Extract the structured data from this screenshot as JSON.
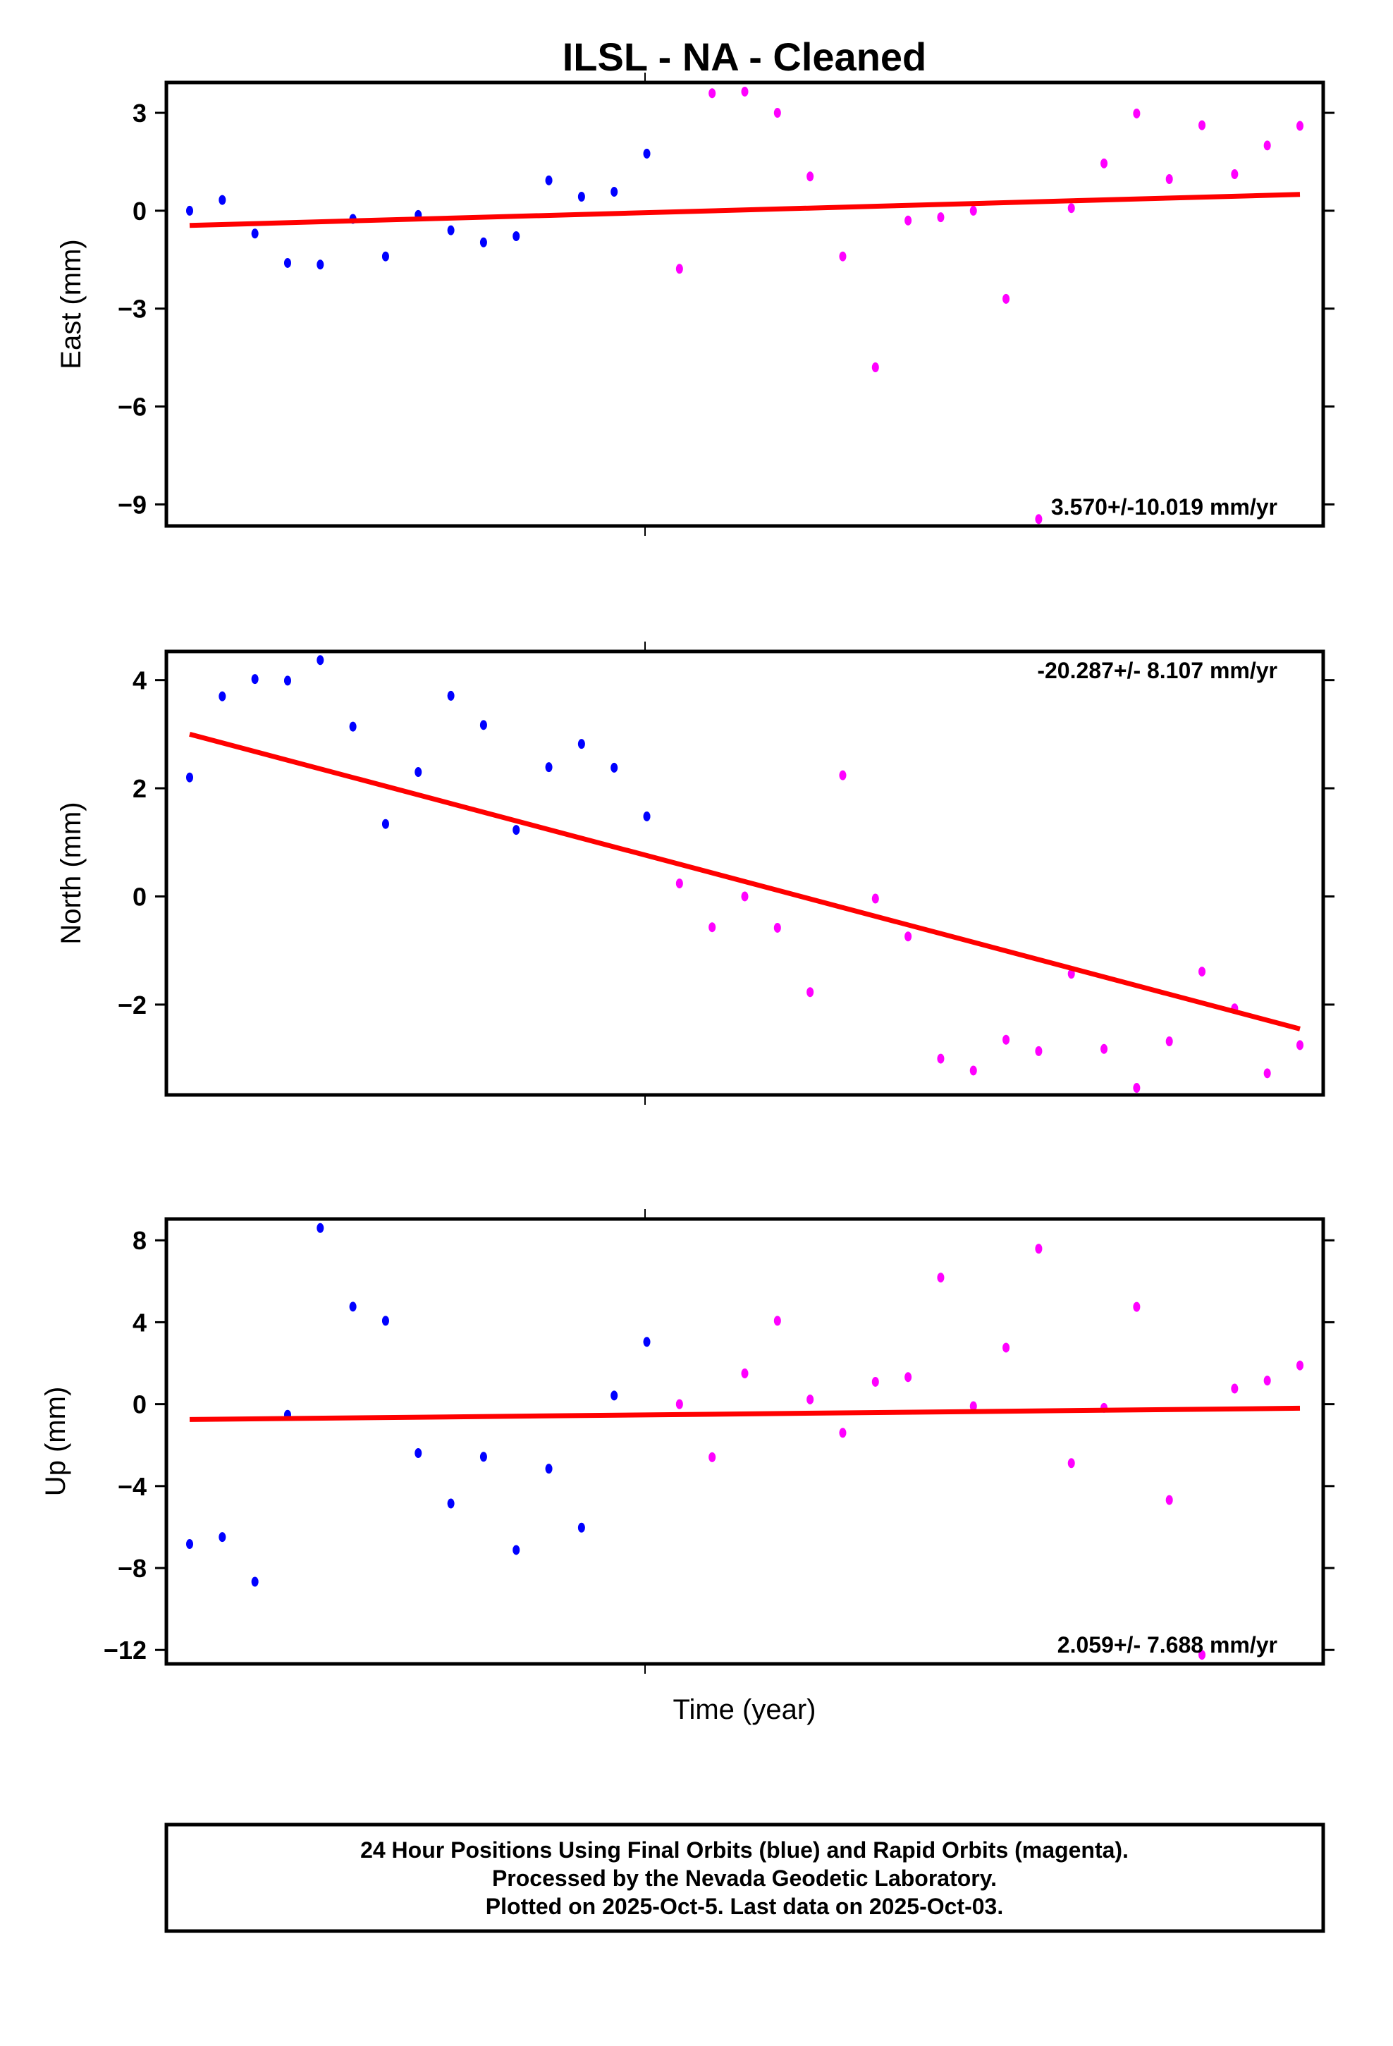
{
  "chart_data": [
    {
      "type": "scatter",
      "title": "ILSL  - NA - Cleaned",
      "ylabel": "East (mm)",
      "xlabel": "",
      "ylim": [
        -9.66,
        3.93
      ],
      "yticks": [
        3,
        0,
        -3,
        -6,
        -9
      ],
      "ytick_labels": [
        "3",
        "0",
        "−3",
        "−6",
        "−9"
      ],
      "rate_label": "3.570+/-10.019 mm/yr",
      "rate_position": "bottom-right",
      "values": [
        0,
        0.33,
        -0.7,
        -1.6,
        -1.65,
        -0.25,
        -1.4,
        -0.13,
        -0.6,
        -0.97,
        -0.78,
        0.93,
        0.43,
        0.58,
        1.75,
        -1.78,
        3.6,
        3.65,
        3.0,
        1.05,
        -1.4,
        -4.8,
        -0.3,
        -0.2,
        0.0,
        -2.7,
        -9.45,
        0.08,
        1.45,
        2.98,
        0.97,
        2.62,
        1.12,
        2.0,
        2.6
      ],
      "trend": [
        -0.45,
        0.5
      ]
    },
    {
      "type": "scatter",
      "ylabel": "North (mm)",
      "xlabel": "",
      "ylim": [
        -3.67,
        4.53
      ],
      "yticks": [
        4,
        2,
        0,
        -2
      ],
      "ytick_labels": [
        "4",
        "2",
        "0",
        "−2"
      ],
      "rate_label": "-20.287+/- 8.107 mm/yr",
      "rate_position": "top-right",
      "values": [
        2.2,
        3.7,
        4.02,
        3.99,
        4.37,
        3.14,
        1.34,
        2.3,
        3.71,
        3.17,
        1.23,
        2.39,
        2.82,
        2.38,
        1.48,
        0.24,
        -0.57,
        0,
        -0.58,
        -1.77,
        2.24,
        -0.04,
        -0.74,
        -3.0,
        -3.22,
        -2.65,
        -2.86,
        -1.43,
        -2.82,
        -3.54,
        -2.68,
        -1.39,
        -2.07,
        -3.27,
        -2.75
      ],
      "trend": [
        3.0,
        -2.45
      ]
    },
    {
      "type": "scatter",
      "ylabel": "Up (mm)",
      "xlabel": "Time (year)",
      "ylim": [
        -12.68,
        9.04
      ],
      "yticks": [
        8,
        4,
        0,
        -4,
        -8,
        -12
      ],
      "ytick_labels": [
        "8",
        "4",
        "0",
        "−4",
        "−8",
        "−12"
      ],
      "rate_label": "2.059+/- 7.688 mm/yr",
      "rate_position": "bottom-right",
      "values": [
        -6.83,
        -6.49,
        -8.67,
        -0.52,
        8.6,
        4.76,
        4.07,
        -2.39,
        -4.85,
        -2.57,
        -7.12,
        -3.15,
        -6.03,
        0.42,
        3.04,
        0,
        -2.59,
        1.5,
        4.07,
        0.23,
        -1.4,
        1.09,
        1.32,
        6.18,
        -0.1,
        2.76,
        7.59,
        -2.88,
        -0.18,
        4.75,
        -4.68,
        -12.24,
        0.76,
        1.15,
        1.89
      ],
      "trend": [
        -0.75,
        -0.2
      ]
    }
  ],
  "series_info": {
    "final_count": 15,
    "final_color": "#0000ff",
    "rapid_color": "#ff00ff",
    "trend_color": "#ff0000"
  },
  "footer": {
    "line1": "24 Hour Positions Using Final Orbits (blue) and Rapid Orbits (magenta).",
    "line2": "Processed by the Nevada Geodetic Laboratory.",
    "line3": "Plotted on 2025-Oct-5. Last data on 2025-Oct-03."
  }
}
